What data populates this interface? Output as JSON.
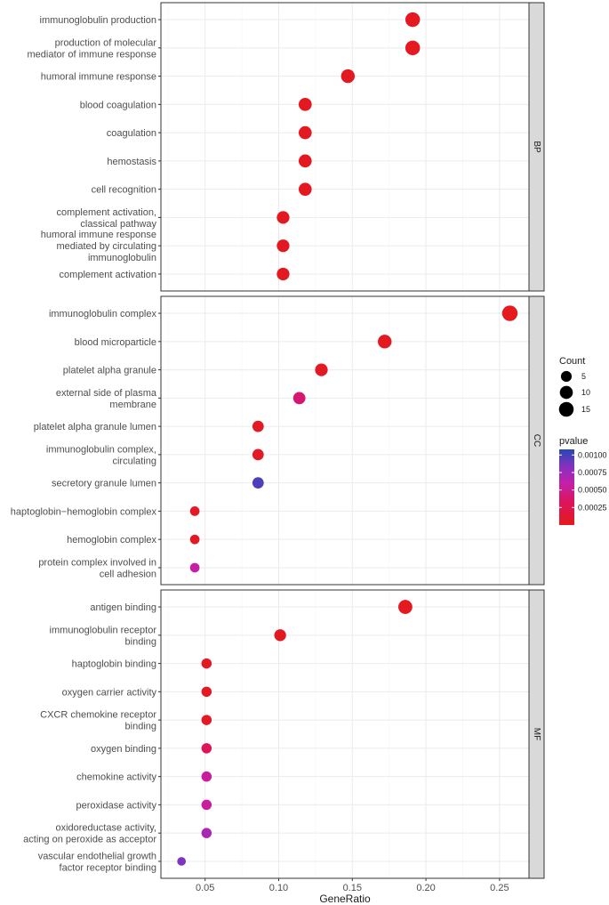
{
  "chart_data": {
    "type": "scatter",
    "xlabel": "GeneRatio",
    "xlim": [
      0.02,
      0.27
    ],
    "x_ticks": [
      0.05,
      0.1,
      0.15,
      0.2,
      0.25
    ],
    "x_tick_labels": [
      "0.05",
      "0.10",
      "0.15",
      "0.20",
      "0.25"
    ],
    "facets": [
      {
        "name": "BP",
        "terms": [
          {
            "lines": [
              "immunoglobulin production"
            ],
            "x": 0.191,
            "count": 15,
            "pvalue": 2e-05
          },
          {
            "lines": [
              "production of molecular",
              "mediator of immune response"
            ],
            "x": 0.191,
            "count": 15,
            "pvalue": 2e-05
          },
          {
            "lines": [
              "humoral immune response"
            ],
            "x": 0.147,
            "count": 12,
            "pvalue": 3e-05
          },
          {
            "lines": [
              "blood coagulation"
            ],
            "x": 0.118,
            "count": 10,
            "pvalue": 3e-05
          },
          {
            "lines": [
              "coagulation"
            ],
            "x": 0.118,
            "count": 10,
            "pvalue": 3e-05
          },
          {
            "lines": [
              "hemostasis"
            ],
            "x": 0.118,
            "count": 10,
            "pvalue": 3e-05
          },
          {
            "lines": [
              "cell recognition"
            ],
            "x": 0.118,
            "count": 10,
            "pvalue": 3e-05
          },
          {
            "lines": [
              "complement activation,",
              "classical pathway"
            ],
            "x": 0.103,
            "count": 9,
            "pvalue": 3e-05
          },
          {
            "lines": [
              "humoral immune response",
              "mediated by circulating",
              "immunoglobulin"
            ],
            "x": 0.103,
            "count": 9,
            "pvalue": 3e-05
          },
          {
            "lines": [
              "complement activation"
            ],
            "x": 0.103,
            "count": 9,
            "pvalue": 3e-05
          }
        ]
      },
      {
        "name": "CC",
        "terms": [
          {
            "lines": [
              "immunoglobulin complex"
            ],
            "x": 0.257,
            "count": 18,
            "pvalue": 1e-05
          },
          {
            "lines": [
              "blood microparticle"
            ],
            "x": 0.172,
            "count": 12,
            "pvalue": 2e-05
          },
          {
            "lines": [
              "platelet alpha granule"
            ],
            "x": 0.129,
            "count": 9,
            "pvalue": 4e-05
          },
          {
            "lines": [
              "external side of plasma",
              "membrane"
            ],
            "x": 0.114,
            "count": 8,
            "pvalue": 0.0004
          },
          {
            "lines": [
              "platelet alpha granule lumen"
            ],
            "x": 0.086,
            "count": 6,
            "pvalue": 4e-05
          },
          {
            "lines": [
              "immunoglobulin complex,",
              "circulating"
            ],
            "x": 0.086,
            "count": 6,
            "pvalue": 4e-05
          },
          {
            "lines": [
              "secretory granule lumen"
            ],
            "x": 0.086,
            "count": 6,
            "pvalue": 0.00098
          },
          {
            "lines": [
              "haptoglobin−hemoglobin complex"
            ],
            "x": 0.043,
            "count": 3,
            "pvalue": 4e-05
          },
          {
            "lines": [
              "hemoglobin complex"
            ],
            "x": 0.043,
            "count": 3,
            "pvalue": 4e-05
          },
          {
            "lines": [
              "protein complex involved in",
              "cell adhesion"
            ],
            "x": 0.043,
            "count": 3,
            "pvalue": 0.00058
          }
        ]
      },
      {
        "name": "MF",
        "terms": [
          {
            "lines": [
              "antigen binding"
            ],
            "x": 0.186,
            "count": 13,
            "pvalue": 2e-05
          },
          {
            "lines": [
              "immunoglobulin receptor",
              "binding"
            ],
            "x": 0.101,
            "count": 7,
            "pvalue": 3e-05
          },
          {
            "lines": [
              "haptoglobin binding"
            ],
            "x": 0.051,
            "count": 4,
            "pvalue": 4e-05
          },
          {
            "lines": [
              "oxygen carrier activity"
            ],
            "x": 0.051,
            "count": 4,
            "pvalue": 4e-05
          },
          {
            "lines": [
              "CXCR chemokine receptor",
              "binding"
            ],
            "x": 0.051,
            "count": 4,
            "pvalue": 4e-05
          },
          {
            "lines": [
              "oxygen binding"
            ],
            "x": 0.051,
            "count": 4,
            "pvalue": 0.0003
          },
          {
            "lines": [
              "chemokine activity"
            ],
            "x": 0.051,
            "count": 4,
            "pvalue": 0.00055
          },
          {
            "lines": [
              "peroxidase activity"
            ],
            "x": 0.051,
            "count": 4,
            "pvalue": 0.00055
          },
          {
            "lines": [
              "oxidoreductase activity,",
              "acting on peroxide as acceptor"
            ],
            "x": 0.051,
            "count": 4,
            "pvalue": 0.0007
          },
          {
            "lines": [
              "vascular endothelial growth",
              "factor receptor binding"
            ],
            "x": 0.034,
            "count": 2,
            "pvalue": 0.00085
          }
        ]
      }
    ],
    "size_legend": {
      "title": "Count",
      "values": [
        5,
        10,
        15
      ],
      "labels": [
        "5",
        "10",
        "15"
      ]
    },
    "color_legend": {
      "title": "pvalue",
      "range": [
        0.0,
        0.00108
      ],
      "ticks": [
        0.00025,
        0.0005,
        0.00075,
        0.001
      ],
      "tick_labels": [
        "0.00025",
        "0.00050",
        "0.00075",
        "0.00100"
      ],
      "colors": {
        "low": "#e41a1c",
        "high": "#2648b5"
      }
    },
    "colors": {
      "panel_border": "#333333",
      "grid_major": "#ebebeb",
      "grid_minor": "#f5f5f5",
      "strip_fill": "#d9d9d9"
    }
  }
}
